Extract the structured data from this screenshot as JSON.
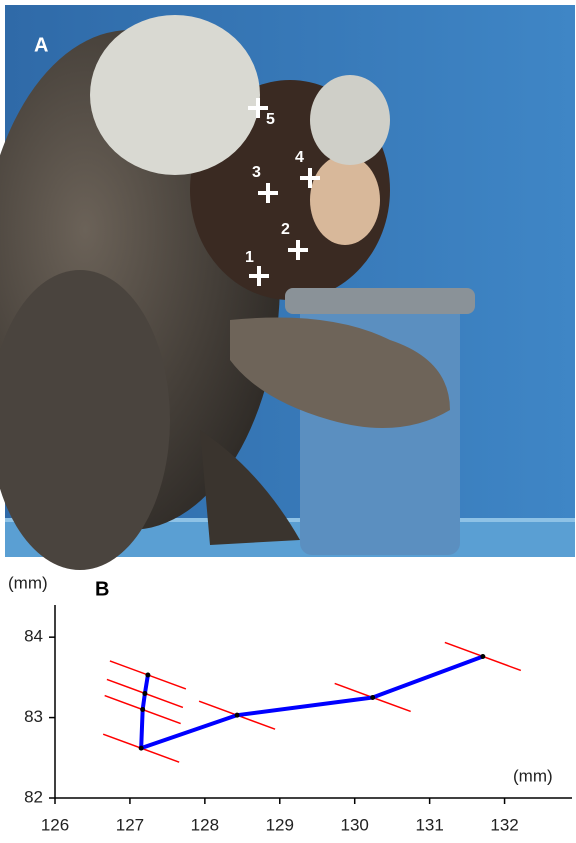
{
  "photo": {
    "label": "A",
    "markers": [
      "1",
      "2",
      "3",
      "4",
      "5"
    ]
  },
  "chart_data": {
    "type": "line",
    "panel_label": "B",
    "ylabel": "(mm)",
    "xlabel": "(mm)",
    "x": [
      127.24,
      127.2,
      127.17,
      127.15,
      128.43,
      130.24,
      131.71
    ],
    "values": [
      83.53,
      83.3,
      83.1,
      82.62,
      83.03,
      83.25,
      83.76
    ],
    "color": "#0000ff",
    "orientation_color": "#ff0000",
    "xlim": [
      126,
      132.9
    ],
    "xticks": [
      126,
      127,
      128,
      129,
      130,
      131,
      132
    ],
    "ylim": [
      82,
      84.4
    ],
    "yticks": [
      82,
      83,
      84
    ]
  }
}
